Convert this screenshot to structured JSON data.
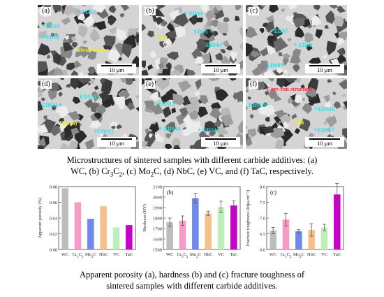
{
  "micro_panels": [
    {
      "label": "(a)",
      "scale": "10 μm",
      "eds": [
        "EDS2",
        "EDS3",
        "EDS1"
      ],
      "annotations": [
        {
          "text": "Metal binder",
          "color": "yellow"
        }
      ]
    },
    {
      "label": "(b)",
      "scale": "10 μm",
      "eds": [
        "EDS4",
        "EDS5",
        "EDS6"
      ],
      "annotations": [
        {
          "text": "Ti₂B",
          "color": "yellow"
        }
      ]
    },
    {
      "label": "(c)",
      "scale": "10 μm",
      "eds": [
        "EDS7",
        "EDS8",
        "EDS9"
      ],
      "annotations": []
    },
    {
      "label": "(d)",
      "scale": "10 μm",
      "eds": [
        "EDS10",
        "EDS11",
        "EDS12"
      ],
      "annotations": [
        {
          "text": "Ti(C,N)",
          "color": "yellow"
        }
      ]
    },
    {
      "label": "(e)",
      "scale": "10 μm",
      "eds": [
        "EDS15",
        "EDS14",
        "EDS13"
      ],
      "annotations": []
    },
    {
      "label": "(f)",
      "scale": "10 μm",
      "eds": [
        "EDS18",
        "EDS16",
        "EDS17"
      ],
      "annotations": [
        {
          "text": "Core-rim structure",
          "color": "red"
        },
        {
          "text": "Ti₂B",
          "color": "yellow"
        }
      ]
    }
  ],
  "caption_top": {
    "line1": "Microstructures of sintered samples with different carbide additives: (a)",
    "line2_a": "WC, (b) Cr",
    "sub3": "3",
    "mid": "C",
    "sub2": "2",
    "line2_b": ", (c) Mo",
    "sub2b": "2",
    "line2_c": "C, (d) NbC, (e) VC, and (f) TaC, respectively."
  },
  "caption_bottom": {
    "line1": "Apparent porosity (a), hardness (b) and (c) fracture toughness of",
    "line2": "sintered samples with different carbide additives."
  },
  "chart_data": [
    {
      "type": "bar",
      "panel_label": "(a)",
      "categories": [
        "WC",
        "Cr3C2",
        "Mo2C",
        "NbC",
        "VC",
        "TaC"
      ],
      "values": [
        0.078,
        0.06,
        0.039,
        0.055,
        0.028,
        0.031
      ],
      "errors": null,
      "ylabel": "Apparent porosity (%)",
      "ylim": [
        0,
        0.08
      ],
      "yticks": [
        "0.00",
        "0.02",
        "0.04",
        "0.06",
        "0.08"
      ],
      "colors": [
        "#bdbdbd",
        "#f69ac6",
        "#6e88ee",
        "#f6c08a",
        "#bfeebd",
        "#c800c8"
      ]
    },
    {
      "type": "bar",
      "panel_label": "(b)",
      "categories": [
        "WC",
        "Cr3C2",
        "Mo2C",
        "NbC",
        "VC",
        "TaC"
      ],
      "values": [
        1760,
        1775,
        1990,
        1845,
        1905,
        1920
      ],
      "errors": [
        40,
        45,
        45,
        20,
        55,
        45
      ],
      "ylabel": "Hardness (HV)",
      "ylim": [
        1500,
        2100
      ],
      "yticks": [
        "1500",
        "1600",
        "1700",
        "1800",
        "1900",
        "2000",
        "2100"
      ],
      "colors": [
        "#bdbdbd",
        "#f69ac6",
        "#6e88ee",
        "#f6c08a",
        "#bfeebd",
        "#c800c8"
      ]
    },
    {
      "type": "bar",
      "panel_label": "(c)",
      "categories": [
        "WC",
        "Cr3C2",
        "Mo2C",
        "NbC",
        "VC",
        "TaC"
      ],
      "values": [
        6.6,
        6.95,
        6.58,
        6.62,
        6.7,
        7.75
      ],
      "errors": [
        0.1,
        0.2,
        0.05,
        0.2,
        0.1,
        0.35
      ],
      "ylabel": "Fracture toughness (Mpa.m¹ᐟ²)",
      "ylim": [
        6.0,
        8.0
      ],
      "yticks": [
        "6.0",
        "6.5",
        "7.0",
        "7.5",
        "8.0"
      ],
      "colors": [
        "#bdbdbd",
        "#f69ac6",
        "#6e88ee",
        "#f6c08a",
        "#bfeebd",
        "#c800c8"
      ]
    }
  ]
}
